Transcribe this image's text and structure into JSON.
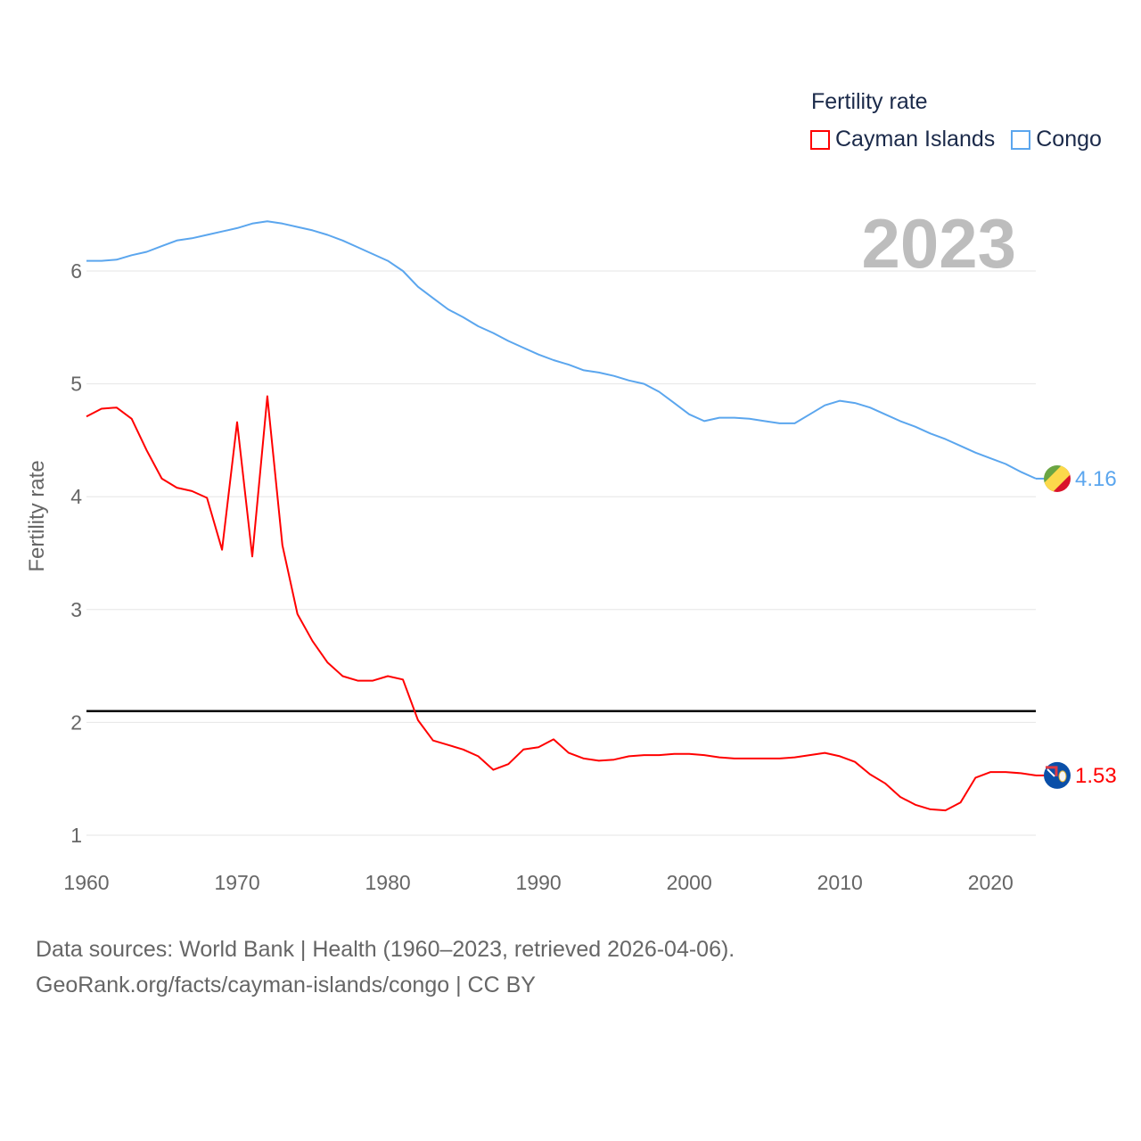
{
  "legend": {
    "title": "Fertility rate",
    "items": [
      {
        "label": "Cayman Islands",
        "color": "#ff0000"
      },
      {
        "label": "Congo",
        "color": "#5ba6ee"
      }
    ]
  },
  "current_year": "2023",
  "footer": {
    "line1": "Data sources: World Bank | Health (1960–2023, retrieved 2026-04-06).",
    "line2": "GeoRank.org/facts/cayman-islands/congo | CC BY"
  },
  "chart_data": {
    "type": "line",
    "title": "Fertility rate",
    "xlabel": "",
    "ylabel": "Fertility rate",
    "xlim": [
      1960,
      2023
    ],
    "ylim": [
      1,
      6
    ],
    "x_ticks": [
      1960,
      1970,
      1980,
      1990,
      2000,
      2010,
      2020
    ],
    "y_ticks": [
      1,
      2,
      3,
      4,
      5,
      6
    ],
    "grid": true,
    "legend_position": "top-right",
    "reference_line": {
      "value": 2.1,
      "color": "#000000"
    },
    "x": [
      1960,
      1961,
      1962,
      1963,
      1964,
      1965,
      1966,
      1967,
      1968,
      1969,
      1970,
      1971,
      1972,
      1973,
      1974,
      1975,
      1976,
      1977,
      1978,
      1979,
      1980,
      1981,
      1982,
      1983,
      1984,
      1985,
      1986,
      1987,
      1988,
      1989,
      1990,
      1991,
      1992,
      1993,
      1994,
      1995,
      1996,
      1997,
      1998,
      1999,
      2000,
      2001,
      2002,
      2003,
      2004,
      2005,
      2006,
      2007,
      2008,
      2009,
      2010,
      2011,
      2012,
      2013,
      2014,
      2015,
      2016,
      2017,
      2018,
      2019,
      2020,
      2021,
      2022,
      2023
    ],
    "series": [
      {
        "name": "Cayman Islands",
        "color": "#ff0000",
        "end_label": "1.53",
        "values": [
          4.71,
          4.78,
          4.79,
          4.69,
          4.41,
          4.16,
          4.08,
          4.05,
          3.99,
          3.53,
          4.66,
          3.47,
          4.89,
          3.57,
          2.96,
          2.72,
          2.53,
          2.41,
          2.37,
          2.37,
          2.41,
          2.38,
          2.02,
          1.84,
          1.8,
          1.76,
          1.7,
          1.58,
          1.63,
          1.76,
          1.78,
          1.85,
          1.73,
          1.68,
          1.66,
          1.67,
          1.7,
          1.71,
          1.71,
          1.72,
          1.72,
          1.71,
          1.69,
          1.68,
          1.68,
          1.68,
          1.68,
          1.69,
          1.71,
          1.73,
          1.7,
          1.65,
          1.54,
          1.46,
          1.34,
          1.27,
          1.23,
          1.22,
          1.29,
          1.51,
          1.56,
          1.56,
          1.55,
          1.53
        ]
      },
      {
        "name": "Congo",
        "color": "#5ba6ee",
        "end_label": "4.16",
        "values": [
          6.09,
          6.09,
          6.1,
          6.14,
          6.17,
          6.22,
          6.27,
          6.29,
          6.32,
          6.35,
          6.38,
          6.42,
          6.44,
          6.42,
          6.39,
          6.36,
          6.32,
          6.27,
          6.21,
          6.15,
          6.09,
          6.0,
          5.86,
          5.76,
          5.66,
          5.59,
          5.51,
          5.45,
          5.38,
          5.32,
          5.26,
          5.21,
          5.17,
          5.12,
          5.1,
          5.07,
          5.03,
          5.0,
          4.93,
          4.83,
          4.73,
          4.67,
          4.7,
          4.7,
          4.69,
          4.67,
          4.65,
          4.65,
          4.73,
          4.81,
          4.85,
          4.83,
          4.79,
          4.73,
          4.67,
          4.62,
          4.56,
          4.51,
          4.45,
          4.39,
          4.34,
          4.29,
          4.22,
          4.16
        ]
      }
    ]
  }
}
